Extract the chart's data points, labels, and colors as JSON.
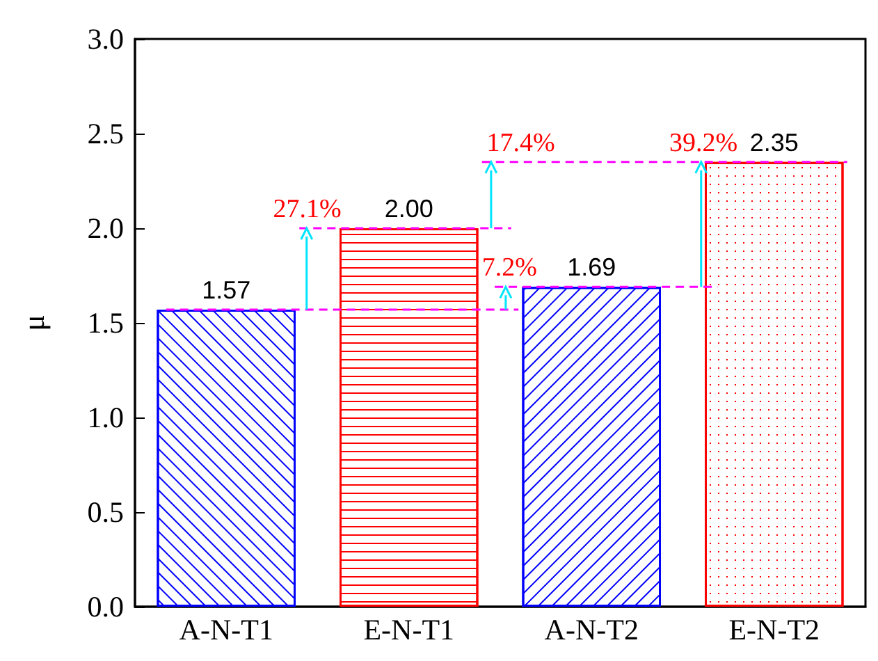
{
  "chart_data": {
    "type": "bar",
    "ylabel": "μ",
    "categories": [
      "A-N-T1",
      "E-N-T1",
      "A-N-T2",
      "E-N-T2"
    ],
    "values": [
      1.57,
      2.0,
      1.69,
      2.35
    ],
    "colors": [
      "#0000ff",
      "#ff0000",
      "#0000ff",
      "#ff0000"
    ],
    "value_labels": [
      "1.57",
      "2.00",
      "1.69",
      "2.35"
    ],
    "ylim": [
      0,
      3
    ],
    "yticks": [
      {
        "value": 0,
        "label": "0.0"
      },
      {
        "value": 0.5,
        "label": "0.5"
      },
      {
        "value": 1,
        "label": "1.0"
      },
      {
        "value": 1.5,
        "label": "1.5"
      },
      {
        "value": 2,
        "label": "2.0"
      },
      {
        "value": 2.5,
        "label": "2.5"
      },
      {
        "value": 3,
        "label": "3.0"
      }
    ],
    "annotations": [
      {
        "text": "27.1%",
        "y": 2.0
      },
      {
        "text": "17.4%",
        "y": 2.35
      },
      {
        "text": "7.2%",
        "y": 1.69
      },
      {
        "text": "39.2%",
        "y": 2.35
      }
    ],
    "ref_lines": [
      {
        "axis": "y",
        "value": 1.57,
        "color": "#ff00ff",
        "line_style": "dashed"
      },
      {
        "axis": "y",
        "value": 2.0,
        "color": "#ff00ff",
        "line_style": "dashed"
      },
      {
        "axis": "y",
        "value": 1.69,
        "color": "#ff00ff",
        "line_style": "dashed"
      },
      {
        "axis": "y",
        "value": 2.35,
        "color": "#ff00ff",
        "line_style": "dashed"
      }
    ],
    "grid": false
  }
}
